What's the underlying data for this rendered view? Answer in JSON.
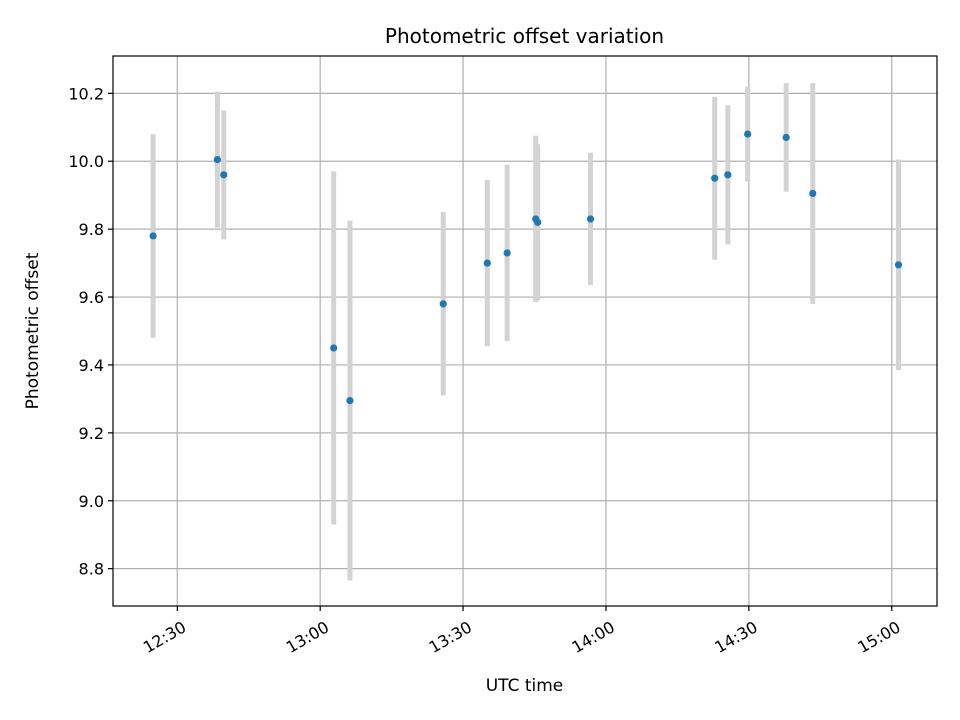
{
  "chart_data": {
    "type": "scatter",
    "title": "Photometric offset variation",
    "xlabel": "UTC time",
    "ylabel": "Photometric offset",
    "x_tick_labels": [
      "12:30",
      "13:00",
      "13:30",
      "14:00",
      "14:30",
      "15:00"
    ],
    "x_tick_minutes": [
      750,
      780,
      810,
      840,
      870,
      900
    ],
    "xlim_minutes": [
      736.5,
      909.5
    ],
    "ylim": [
      8.69,
      10.31
    ],
    "y_ticks": [
      8.8,
      9.0,
      9.2,
      9.4,
      9.6,
      9.8,
      10.0,
      10.2
    ],
    "y_tick_labels": [
      "8.8",
      "9.0",
      "9.2",
      "9.4",
      "9.6",
      "9.8",
      "10.0",
      "10.2"
    ],
    "grid": true,
    "colors": {
      "point": "#1f77b4",
      "errorbar": "#d3d3d3",
      "grid": "#b0b0b0",
      "axes": "#000000"
    },
    "points": [
      {
        "time": "12:24:55",
        "y": 9.78,
        "err": 0.3
      },
      {
        "time": "12:38:25",
        "y": 10.005,
        "err": 0.2
      },
      {
        "time": "12:39:45",
        "y": 9.96,
        "err": 0.19
      },
      {
        "time": "13:02:50",
        "y": 9.45,
        "err": 0.52
      },
      {
        "time": "13:06:15",
        "y": 9.295,
        "err": 0.53
      },
      {
        "time": "13:25:50",
        "y": 9.58,
        "err": 0.27
      },
      {
        "time": "13:35:05",
        "y": 9.7,
        "err": 0.245
      },
      {
        "time": "13:39:15",
        "y": 9.73,
        "err": 0.26
      },
      {
        "time": "13:45:15",
        "y": 9.83,
        "err": 0.245
      },
      {
        "time": "13:45:40",
        "y": 9.82,
        "err": 0.23
      },
      {
        "time": "13:56:45",
        "y": 9.83,
        "err": 0.195
      },
      {
        "time": "14:22:50",
        "y": 9.95,
        "err": 0.24
      },
      {
        "time": "14:25:35",
        "y": 9.96,
        "err": 0.205
      },
      {
        "time": "14:29:45",
        "y": 10.08,
        "err": 0.14
      },
      {
        "time": "14:37:50",
        "y": 10.07,
        "err": 0.16
      },
      {
        "time": "14:43:25",
        "y": 9.905,
        "err": 0.325
      },
      {
        "time": "15:01:25",
        "y": 9.695,
        "err": 0.31
      }
    ]
  }
}
